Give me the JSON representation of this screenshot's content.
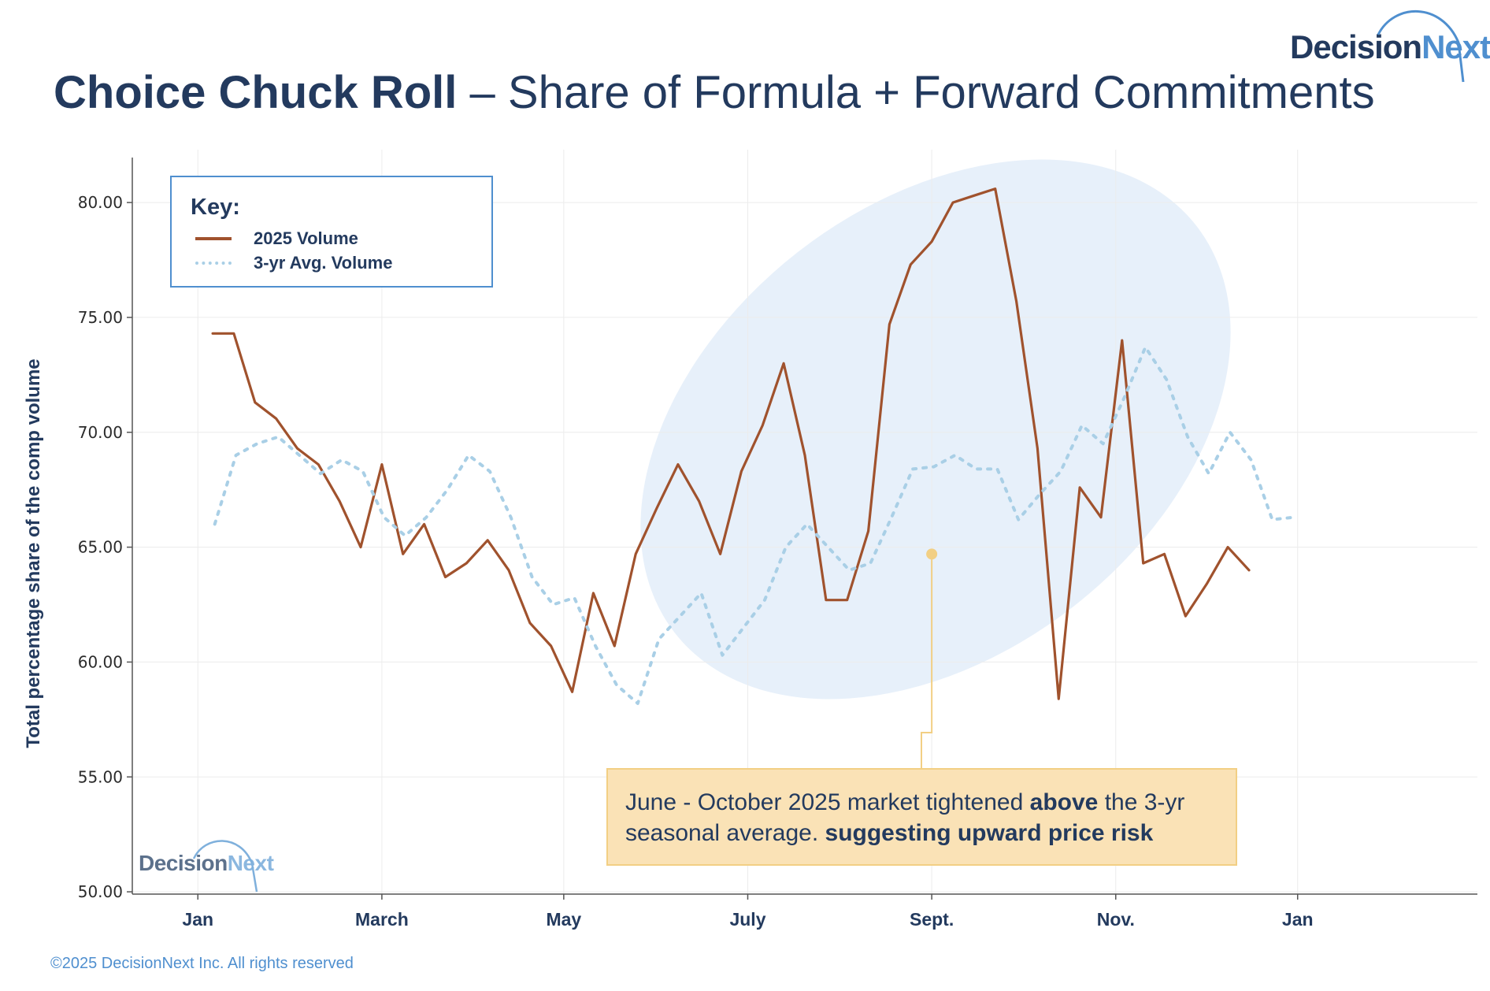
{
  "header": {
    "title_bold": "Choice Chuck Roll",
    "title_rest": " – Share of Formula + Forward Commitments"
  },
  "logo": {
    "part1": "Decision",
    "part2": "Next"
  },
  "footer": {
    "copyright": "©2025 DecisionNext Inc. All rights reserved"
  },
  "key": {
    "title": "Key:",
    "items": [
      {
        "label": "2025 Volume",
        "color": "#a0522d",
        "style": "solid"
      },
      {
        "label": "3-yr Avg. Volume",
        "color": "#a9cfe6",
        "style": "dotted"
      }
    ]
  },
  "annotation": {
    "part1": "June - October 2025 market tightened ",
    "bold1": "above",
    "part2": " the 3-yr seasonal average. ",
    "bold2": "suggesting upward price risk"
  },
  "chart_data": {
    "type": "line",
    "title": "Choice Chuck Roll – Share of Formula + Forward Commitments",
    "ylabel": "Total percentage share of the  comp volume",
    "xlabel": "",
    "ylim": [
      49.9,
      82.3
    ],
    "xlim_weeks": [
      -3.1,
      60.5
    ],
    "yticks": [
      "50.00",
      "55.00",
      "60.00",
      "65.00",
      "70.00",
      "75.00",
      "80.00"
    ],
    "ytick_values": [
      50,
      55,
      60,
      65,
      70,
      75,
      80
    ],
    "xticks": [
      "Jan",
      "March",
      "May",
      "July",
      "Sept.",
      "Nov.",
      "Jan"
    ],
    "xtick_weeks": [
      0,
      8.7,
      17.3,
      26,
      34.7,
      43.4,
      52
    ],
    "grid": true,
    "legend_position": "top-left",
    "colors": {
      "volume_2025": "#a0522d",
      "avg_3yr": "#a9cfe6",
      "highlight": "#e3edf9",
      "callout": "#f2cf84"
    },
    "series": [
      {
        "name": "2025 Volume",
        "style": "solid",
        "weeks": [
          0.7,
          1.7,
          2.7,
          3.7,
          4.7,
          5.7,
          6.7,
          7.7,
          8.7,
          9.7,
          10.7,
          11.7,
          12.7,
          13.7,
          14.7,
          15.7,
          16.7,
          17.7,
          18.7,
          19.7,
          20.7,
          21.7,
          22.7,
          23.7,
          24.7,
          25.7,
          26.7,
          27.7,
          28.7,
          29.7,
          30.7,
          31.7,
          32.7,
          33.7,
          34.7,
          35.7,
          36.7,
          37.7,
          38.7,
          39.7,
          40.7,
          41.7,
          42.7,
          43.7,
          44.7,
          45.7,
          46.7,
          47.7,
          48.7,
          49.7
        ],
        "values": [
          74.3,
          74.3,
          71.3,
          70.6,
          69.3,
          68.6,
          67,
          65,
          68.6,
          64.7,
          66,
          63.7,
          64.3,
          65.3,
          64,
          61.7,
          60.7,
          58.7,
          63,
          60.7,
          64.7,
          66.7,
          68.6,
          67,
          64.7,
          68.3,
          70.3,
          73,
          69,
          62.7,
          62.7,
          65.7,
          74.7,
          77.3,
          78.3,
          80,
          80.3,
          80.6,
          75.7,
          69.3,
          58.4,
          67.6,
          66.3,
          74,
          64.3,
          64.7,
          62,
          63.4,
          65,
          64
        ]
      },
      {
        "name": "3-yr Avg. Volume",
        "style": "dotted",
        "weeks": [
          0.8,
          1.8,
          2.8,
          3.8,
          4.8,
          5.8,
          6.8,
          7.8,
          8.8,
          9.8,
          10.8,
          11.8,
          12.8,
          13.8,
          14.8,
          15.8,
          16.8,
          17.8,
          18.8,
          19.8,
          20.8,
          21.8,
          22.8,
          23.8,
          24.8,
          25.8,
          26.8,
          27.8,
          28.8,
          29.8,
          30.8,
          31.8,
          32.8,
          33.8,
          34.8,
          35.8,
          36.8,
          37.8,
          38.8,
          39.8,
          40.8,
          41.8,
          42.8,
          43.8,
          44.8,
          45.8,
          46.8,
          47.8,
          48.8,
          49.8,
          50.8,
          51.8
        ],
        "values": [
          66,
          69,
          69.5,
          69.8,
          69,
          68.2,
          68.8,
          68.3,
          66.3,
          65.5,
          66.3,
          67.5,
          69,
          68.3,
          66.3,
          63.7,
          62.5,
          62.8,
          60.7,
          59,
          58.2,
          61,
          62,
          63,
          60.3,
          61.5,
          62.7,
          65,
          66,
          65,
          64,
          64.3,
          66.3,
          68.4,
          68.5,
          69,
          68.4,
          68.4,
          66.2,
          67.3,
          68.3,
          70.3,
          69.5,
          71.5,
          73.7,
          72.3,
          69.8,
          68.2,
          70,
          68.8,
          66.2,
          66.3
        ]
      }
    ],
    "highlight_region": {
      "from_month": "June",
      "to_month": "October"
    },
    "callout_point": {
      "week": 34.7,
      "value": 64.7
    }
  }
}
